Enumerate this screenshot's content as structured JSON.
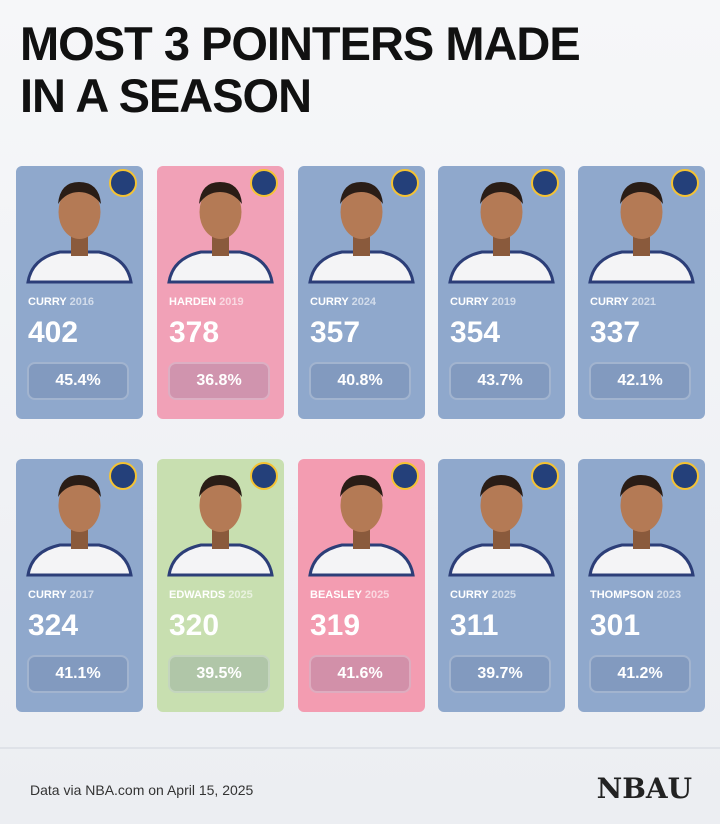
{
  "header": {
    "title_lines": [
      "MOST 3 POINTERS MADE",
      "IN A SEASON"
    ]
  },
  "cards": [
    {
      "name": "CURRY",
      "year": 2016,
      "made": 402,
      "pct": "45.4%",
      "color": "#8fa8cc"
    },
    {
      "name": "HARDEN",
      "year": 2019,
      "made": 378,
      "pct": "36.8%",
      "color": "#f1a1b7"
    },
    {
      "name": "CURRY",
      "year": 2024,
      "made": 357,
      "pct": "40.8%",
      "color": "#8fa8cc"
    },
    {
      "name": "CURRY",
      "year": 2019,
      "made": 354,
      "pct": "43.7%",
      "color": "#8fa8cc"
    },
    {
      "name": "CURRY",
      "year": 2021,
      "made": 337,
      "pct": "42.1%",
      "color": "#8fa8cc"
    },
    {
      "name": "CURRY",
      "year": 2017,
      "made": 324,
      "pct": "41.1%",
      "color": "#8fa8cc"
    },
    {
      "name": "EDWARDS",
      "year": 2025,
      "made": 320,
      "pct": "39.5%",
      "color": "#c8dfb0"
    },
    {
      "name": "BEASLEY",
      "year": 2025,
      "made": 319,
      "pct": "41.6%",
      "color": "#f39cb1"
    },
    {
      "name": "CURRY",
      "year": 2025,
      "made": 311,
      "pct": "39.7%",
      "color": "#8fa8cc"
    },
    {
      "name": "THOMPSON",
      "year": 2023,
      "made": 301,
      "pct": "41.2%",
      "color": "#8fa8cc"
    }
  ],
  "footer": {
    "source": "Data via NBA.com on April 15, 2025",
    "brand": "NBAU"
  }
}
